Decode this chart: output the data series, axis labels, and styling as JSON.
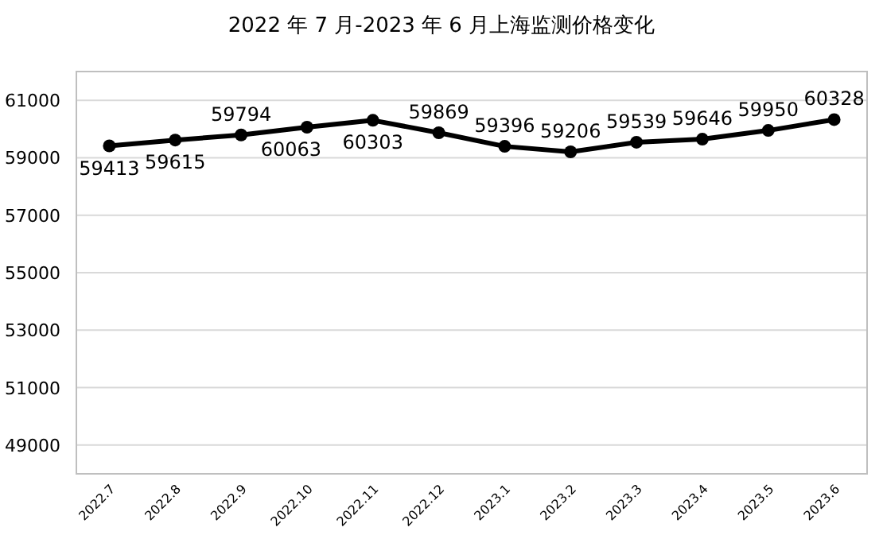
{
  "chart_data": {
    "type": "line",
    "title": "2022 年 7 月-2023 年 6 月上海监测价格变化",
    "categories": [
      "2022.7",
      "2022.8",
      "2022.9",
      "2022.10",
      "2022.11",
      "2022.12",
      "2023.1",
      "2023.2",
      "2023.3",
      "2023.4",
      "2023.5",
      "2023.6"
    ],
    "series": [
      {
        "color": "#000000",
        "values": [
          59413,
          59615,
          59794,
          60063,
          60303,
          59869,
          59396,
          59206,
          59539,
          59646,
          59950,
          60328
        ]
      }
    ],
    "ylim": [
      48000,
      62000
    ],
    "yticks": [
      49000,
      51000,
      53000,
      55000,
      57000,
      59000,
      61000
    ],
    "grid": "y",
    "marker": "circle",
    "line_style": "solid",
    "data_labels": true
  }
}
